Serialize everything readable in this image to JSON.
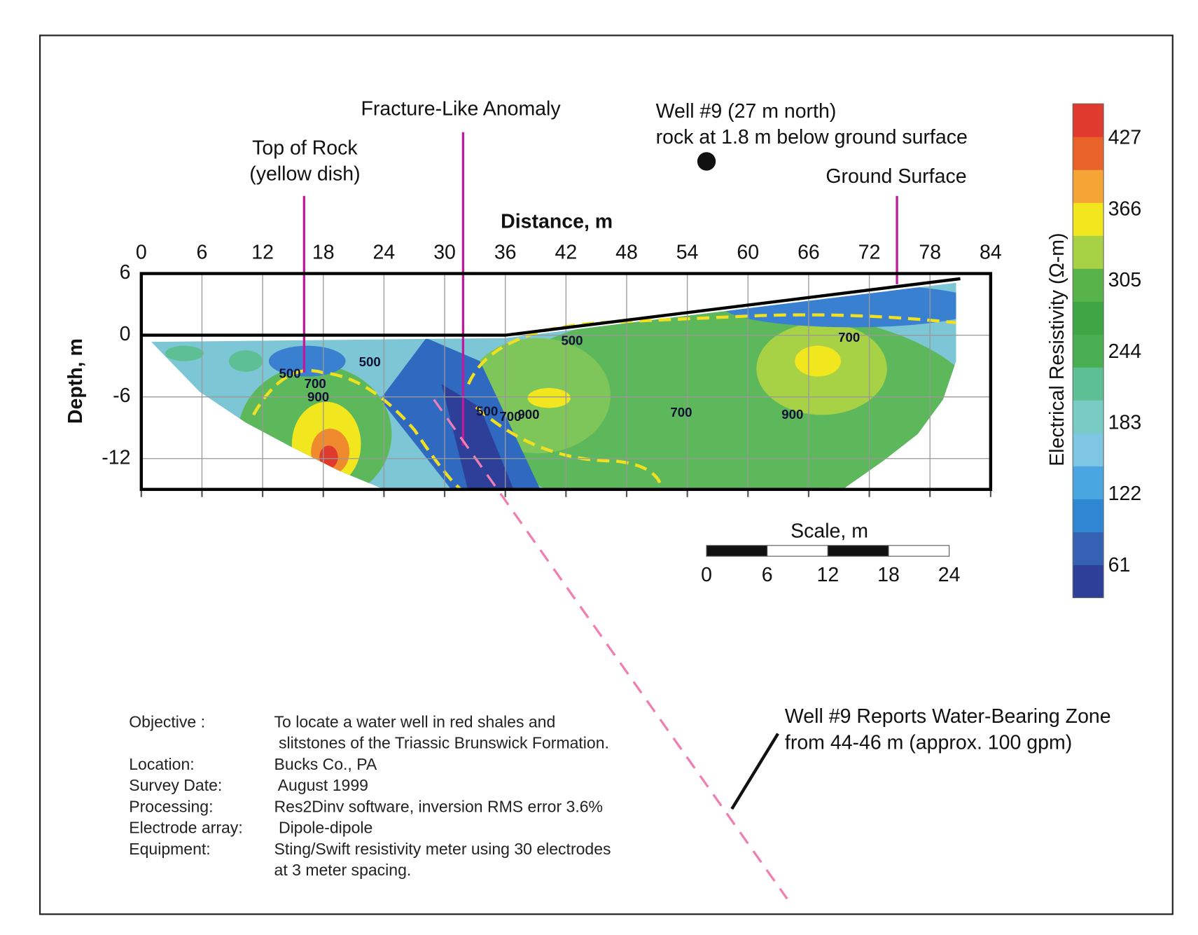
{
  "chart_data": {
    "type": "section",
    "x_label": "Distance, m",
    "y_label": "Depth, m",
    "xlim": [
      0,
      84
    ],
    "xticks": [
      0,
      6,
      12,
      18,
      24,
      30,
      36,
      42,
      48,
      54,
      60,
      66,
      72,
      78,
      84
    ],
    "ylim": [
      -15,
      6
    ],
    "yticks": [
      6,
      0,
      -6,
      -12
    ],
    "grid": true,
    "ground_surface": {
      "x": [
        0,
        36,
        81
      ],
      "y": [
        0,
        0,
        5.5
      ]
    },
    "contour_labels": [
      {
        "value": 500,
        "x": 14.7,
        "y": -3.8
      },
      {
        "value": 700,
        "x": 17.2,
        "y": -4.8
      },
      {
        "value": 900,
        "x": 17.5,
        "y": -6.1
      },
      {
        "value": 500,
        "x": 22.6,
        "y": -2.7
      },
      {
        "value": 500,
        "x": 42.6,
        "y": -0.6
      },
      {
        "value": 700,
        "x": 70,
        "y": -0.3
      },
      {
        "value": 700,
        "x": 53.4,
        "y": -7.6
      },
      {
        "value": 900,
        "x": 64.4,
        "y": -7.8
      },
      {
        "value": 500,
        "x": 34.2,
        "y": -7.5
      },
      {
        "value": 700,
        "x": 36.5,
        "y": -8.0
      },
      {
        "value": 900,
        "x": 38.3,
        "y": -7.8
      }
    ],
    "colorbar": {
      "label": "Electrical Resistivity (Ω-m)",
      "clim": [
        34,
        457
      ],
      "ticks": [
        427,
        366,
        305,
        244,
        183,
        122,
        61
      ],
      "colors": [
        "#2d3f98",
        "#3561b4",
        "#2f87d3",
        "#4aa6e0",
        "#7ec6e4",
        "#78ccc4",
        "#5dbf94",
        "#4aae52",
        "#3fa646",
        "#58b34a",
        "#a8d246",
        "#f2e61e",
        "#f4a535",
        "#e8622a",
        "#e03a2e"
      ]
    },
    "scale_bar": {
      "label": "Scale, m",
      "ticks": [
        0,
        6,
        12,
        18,
        24
      ]
    },
    "annotations": {
      "top_of_rock": [
        "Top of Rock",
        "(yellow dish)"
      ],
      "fracture": [
        "Fracture-Like Anomaly"
      ],
      "well": [
        "Well #9 (27 m north)",
        "rock at 1.8 m below ground surface"
      ],
      "ground_surface": [
        "Ground Surface"
      ],
      "water_zone": [
        "Well #9 Reports Water-Bearing Zone",
        "from 44-46 m (approx. 100 gpm)"
      ]
    },
    "notes": [
      {
        "label": "Objective :",
        "lines": [
          "To locate a water well in red shales and",
          " slitstones of the Triassic Brunswick Formation."
        ]
      },
      {
        "label": "Location:",
        "lines": [
          "Bucks Co., PA"
        ]
      },
      {
        "label": "Survey Date:",
        "lines": [
          " August 1999"
        ]
      },
      {
        "label": "Processing:",
        "lines": [
          "Res2Dinv software, inversion RMS error 3.6%"
        ]
      },
      {
        "label": "Electrode array:",
        "lines": [
          " Dipole-dipole"
        ]
      },
      {
        "label": "Equipment:",
        "lines": [
          "Sting/Swift resistivity meter using 30 electrodes",
          "at 3 meter spacing."
        ]
      }
    ]
  }
}
